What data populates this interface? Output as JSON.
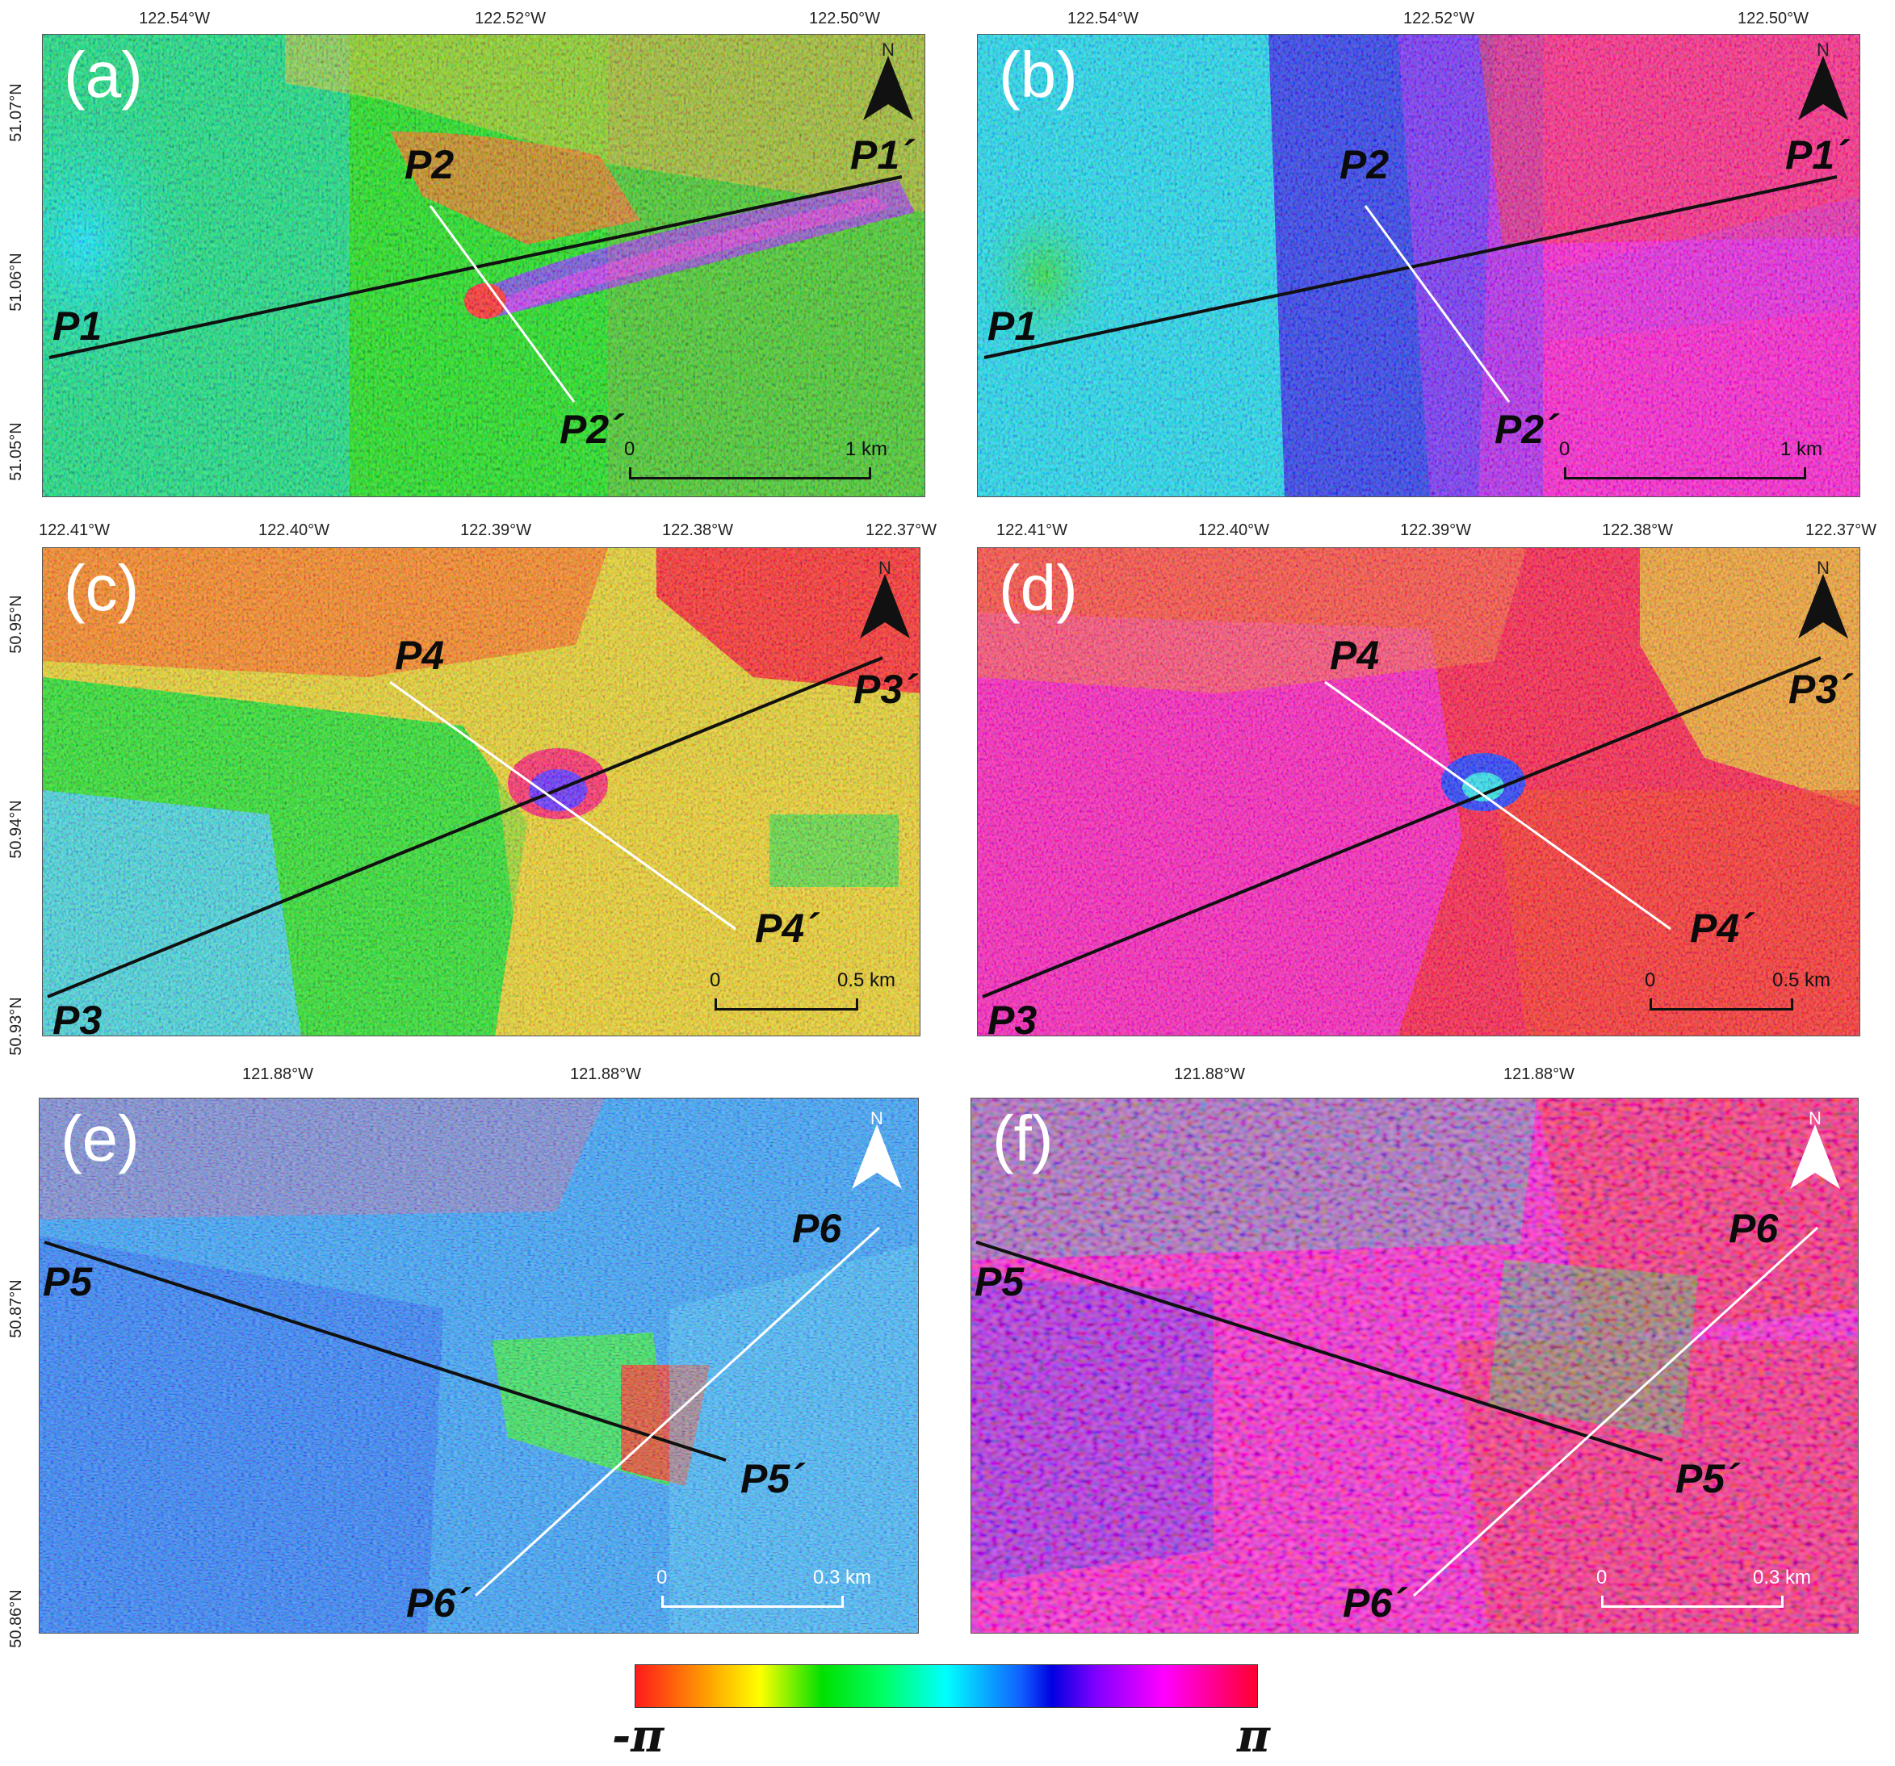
{
  "panels": [
    {
      "id": "a",
      "label": "(a)",
      "xticks": [
        "122.54°W",
        "122.52°W",
        "122.50°W"
      ],
      "yticks": [
        "51.07°N",
        "51.06°N",
        "51.05°N"
      ],
      "points": [
        "P1",
        "P1´",
        "P2",
        "P2´"
      ],
      "scale": {
        "start": "0",
        "end": "1 km"
      }
    },
    {
      "id": "b",
      "label": "(b)",
      "xticks": [
        "122.54°W",
        "122.52°W",
        "122.50°W"
      ],
      "points": [
        "P1",
        "P1´",
        "P2",
        "P2´"
      ],
      "scale": {
        "start": "0",
        "end": "1 km"
      }
    },
    {
      "id": "c",
      "label": "(c)",
      "xticks": [
        "122.41°W",
        "122.40°W",
        "122.39°W",
        "122.38°W",
        "122.37°W"
      ],
      "yticks": [
        "50.95°N",
        "50.94°N",
        "50.93°N"
      ],
      "points": [
        "P3",
        "P3´",
        "P4",
        "P4´"
      ],
      "scale": {
        "start": "0",
        "end": "0.5 km"
      }
    },
    {
      "id": "d",
      "label": "(d)",
      "xticks": [
        "122.41°W",
        "122.40°W",
        "122.39°W",
        "122.38°W",
        "122.37°W"
      ],
      "points": [
        "P3",
        "P3´",
        "P4",
        "P4´"
      ],
      "scale": {
        "start": "0",
        "end": "0.5 km"
      }
    },
    {
      "id": "e",
      "label": "(e)",
      "xticks": [
        "121.88°W",
        "121.88°W"
      ],
      "yticks": [
        "50.87°N",
        "50.86°N"
      ],
      "points": [
        "P5",
        "P5´",
        "P6",
        "P6´"
      ],
      "scale": {
        "start": "0",
        "end": "0.3 km"
      }
    },
    {
      "id": "f",
      "label": "(f)",
      "xticks": [
        "121.88°W",
        "121.88°W"
      ],
      "points": [
        "P5",
        "P5´",
        "P6",
        "P6´"
      ],
      "scale": {
        "start": "0",
        "end": "0.3 km"
      }
    }
  ],
  "north_label": "N",
  "colorbar": {
    "min": "-π",
    "max": "π"
  },
  "colors": {
    "profile_dark": "#111111",
    "profile_light": "#ffffff"
  }
}
